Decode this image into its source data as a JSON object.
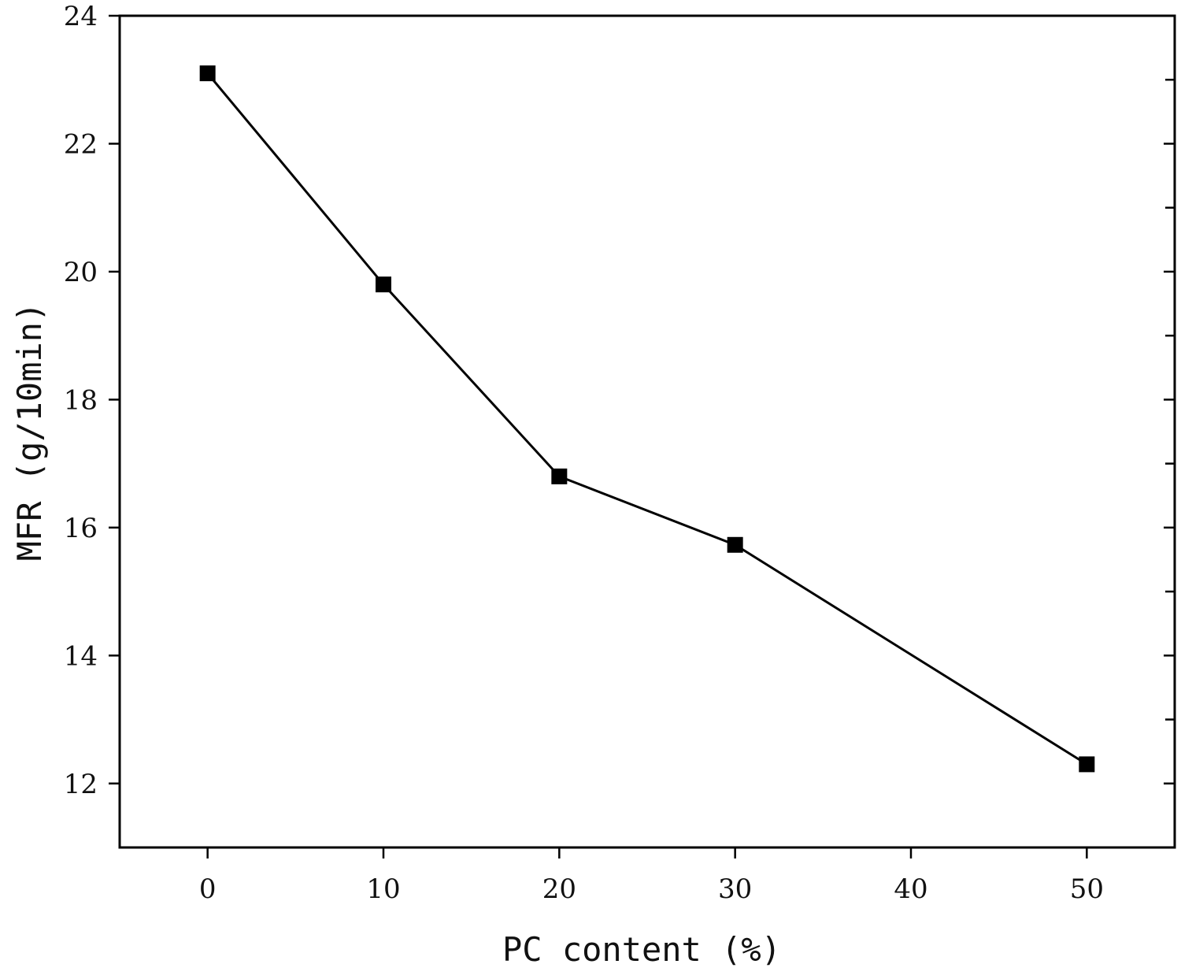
{
  "chart_data": {
    "type": "line",
    "title": "",
    "xlabel": "PC content (%)",
    "ylabel": "MFR (g/10min)",
    "xlim": [
      -5,
      55
    ],
    "ylim": [
      11,
      24
    ],
    "xticks": [
      0,
      10,
      20,
      30,
      40,
      50
    ],
    "yticks": [
      12,
      14,
      16,
      18,
      20,
      22,
      24
    ],
    "x_tick_labels": [
      "0",
      "10",
      "20",
      "30",
      "40",
      "50"
    ],
    "y_tick_labels": [
      "12",
      "14",
      "16",
      "18",
      "20",
      "22",
      "24"
    ],
    "grid": false,
    "legend": "none",
    "series": [
      {
        "marker": "square",
        "color": "#000000",
        "x": [
          0,
          10,
          20,
          30,
          50
        ],
        "y": [
          23.1,
          19.8,
          16.8,
          15.73,
          12.3
        ]
      }
    ]
  }
}
